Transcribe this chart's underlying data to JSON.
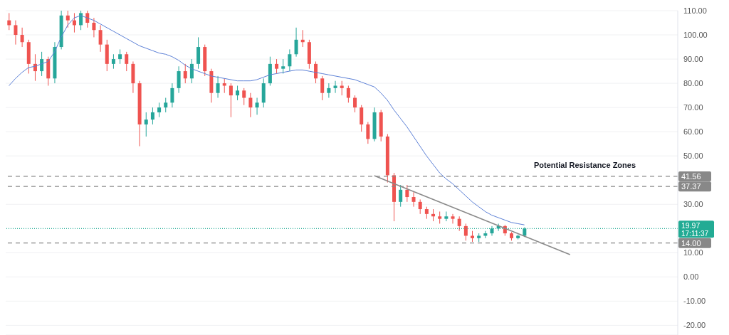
{
  "chart_data": {
    "type": "candlestick",
    "categories": [
      null,
      null,
      null,
      null,
      null,
      null,
      null,
      null,
      null,
      null,
      null,
      null,
      null,
      null,
      null,
      null,
      null,
      null,
      null,
      null,
      null,
      null,
      null,
      null,
      null,
      null,
      null,
      null,
      null,
      null,
      null,
      null,
      null,
      null,
      null,
      null,
      null,
      null,
      null,
      null,
      null,
      null,
      null,
      null,
      null,
      null,
      null,
      null,
      null,
      null,
      null,
      null,
      null,
      null,
      null,
      null,
      null,
      null,
      null,
      null,
      null,
      null,
      null,
      null,
      null,
      null,
      null,
      null,
      null,
      null,
      null,
      null,
      null,
      null,
      null,
      null,
      null,
      null,
      null,
      null,
      null,
      null,
      null,
      null,
      null,
      null,
      null,
      null,
      null,
      null,
      null,
      null,
      null,
      null,
      null,
      null,
      null,
      null,
      null,
      null,
      null,
      null,
      null
    ],
    "ohlc": [
      [
        106,
        109,
        102,
        104
      ],
      [
        104,
        106,
        96,
        100
      ],
      [
        100,
        103,
        95,
        97
      ],
      [
        97,
        98,
        84,
        88
      ],
      [
        88,
        92,
        81,
        85
      ],
      [
        85,
        93,
        83,
        90
      ],
      [
        90,
        91,
        79,
        82
      ],
      [
        82,
        97,
        80,
        95
      ],
      [
        95,
        110,
        94,
        108
      ],
      [
        108,
        110,
        103,
        106
      ],
      [
        106,
        109,
        101,
        104
      ],
      [
        104,
        110,
        102,
        109
      ],
      [
        109,
        111,
        103,
        105
      ],
      [
        105,
        107,
        99,
        102
      ],
      [
        102,
        104,
        93,
        96
      ],
      [
        96,
        98,
        85,
        88
      ],
      [
        88,
        92,
        86,
        90
      ],
      [
        90,
        94,
        88,
        92
      ],
      [
        92,
        93,
        85,
        88
      ],
      [
        88,
        89,
        76,
        80
      ],
      [
        80,
        81,
        54,
        63
      ],
      [
        63,
        68,
        58,
        65
      ],
      [
        65,
        70,
        63,
        68
      ],
      [
        68,
        72,
        66,
        70
      ],
      [
        70,
        74,
        68,
        72
      ],
      [
        72,
        80,
        70,
        78
      ],
      [
        78,
        87,
        76,
        85
      ],
      [
        85,
        88,
        80,
        82
      ],
      [
        82,
        90,
        80,
        88
      ],
      [
        88,
        99,
        86,
        95
      ],
      [
        95,
        96,
        83,
        85
      ],
      [
        85,
        86,
        72,
        76
      ],
      [
        76,
        83,
        74,
        80
      ],
      [
        80,
        82,
        76,
        79
      ],
      [
        79,
        80,
        66,
        75
      ],
      [
        75,
        79,
        73,
        77
      ],
      [
        77,
        78,
        71,
        74
      ],
      [
        74,
        76,
        66,
        70
      ],
      [
        70,
        74,
        67,
        72
      ],
      [
        72,
        82,
        70,
        80
      ],
      [
        80,
        91,
        79,
        88
      ],
      [
        88,
        90,
        84,
        86
      ],
      [
        86,
        90,
        84,
        87
      ],
      [
        87,
        94,
        85,
        92
      ],
      [
        92,
        103,
        91,
        98
      ],
      [
        98,
        102,
        95,
        97
      ],
      [
        97,
        98,
        86,
        88
      ],
      [
        88,
        89,
        80,
        82
      ],
      [
        82,
        83,
        73,
        76
      ],
      [
        76,
        80,
        74,
        78
      ],
      [
        78,
        81,
        76,
        79
      ],
      [
        79,
        81,
        75,
        78
      ],
      [
        78,
        79,
        72,
        74
      ],
      [
        74,
        75,
        68,
        70
      ],
      [
        70,
        71,
        60,
        63
      ],
      [
        63,
        64,
        55,
        57
      ],
      [
        57,
        70,
        56,
        68
      ],
      [
        68,
        69,
        56,
        58
      ],
      [
        58,
        59,
        39,
        42
      ],
      [
        42,
        43,
        23,
        31
      ],
      [
        31,
        38,
        29,
        36
      ],
      [
        36,
        38,
        31,
        33
      ],
      [
        33,
        35,
        29,
        31
      ],
      [
        31,
        32,
        26,
        28
      ],
      [
        28,
        29,
        24,
        26
      ],
      [
        26,
        28,
        23,
        25
      ],
      [
        25,
        27,
        22,
        24
      ],
      [
        24,
        27,
        23,
        25
      ],
      [
        25,
        26,
        22,
        24
      ],
      [
        24,
        25,
        19,
        21
      ],
      [
        21,
        22,
        15,
        17
      ],
      [
        17,
        19,
        14.5,
        16
      ],
      [
        16,
        18,
        14.5,
        17
      ],
      [
        17,
        19,
        16,
        18
      ],
      [
        18,
        21,
        17,
        20
      ],
      [
        20,
        22,
        19,
        21
      ],
      [
        21,
        21.5,
        17,
        18
      ],
      [
        18,
        18.5,
        15,
        16
      ],
      [
        16,
        17.5,
        15.5,
        17
      ],
      [
        17,
        20.5,
        16.5,
        19.97
      ],
      null,
      null,
      null,
      null,
      null,
      null,
      null,
      null,
      null,
      null,
      null,
      null,
      null,
      null,
      null,
      null,
      null,
      null,
      null,
      null,
      null,
      null,
      null
    ],
    "colors": [
      "#ef5350",
      "#ef5350",
      "#ef5350",
      "#ef5350",
      "#ef5350",
      "#26a69a",
      "#ef5350",
      "#26a69a",
      "#26a69a",
      "#ef5350",
      "#ef5350",
      "#26a69a",
      "#ef5350",
      "#ef5350",
      "#ef5350",
      "#ef5350",
      "#26a69a",
      "#26a69a",
      "#ef5350",
      "#ef5350",
      "#ef5350",
      "#26a69a",
      "#26a69a",
      "#26a69a",
      "#26a69a",
      "#26a69a",
      "#26a69a",
      "#ef5350",
      "#26a69a",
      "#26a69a",
      "#ef5350",
      "#ef5350",
      "#26a69a",
      "#ef5350",
      "#ef5350",
      "#26a69a",
      "#ef5350",
      "#ef5350",
      "#26a69a",
      "#26a69a",
      "#26a69a",
      "#ef5350",
      "#26a69a",
      "#26a69a",
      "#26a69a",
      "#ef5350",
      "#ef5350",
      "#ef5350",
      "#ef5350",
      "#26a69a",
      "#26a69a",
      "#ef5350",
      "#ef5350",
      "#ef5350",
      "#ef5350",
      "#ef5350",
      "#26a69a",
      "#ef5350",
      "#ef5350",
      "#ef5350",
      "#26a69a",
      "#ef5350",
      "#ef5350",
      "#ef5350",
      "#ef5350",
      "#ef5350",
      "#ef5350",
      "#26a69a",
      "#ef5350",
      "#ef5350",
      "#ef5350",
      "#ef5350",
      "#26a69a",
      "#26a69a",
      "#26a69a",
      "#26a69a",
      "#ef5350",
      "#ef5350",
      "#26a69a",
      "#26a69a",
      null,
      null,
      null,
      null,
      null,
      null,
      null,
      null,
      null,
      null,
      null,
      null,
      null,
      null,
      null,
      null,
      null,
      null,
      null,
      null,
      null,
      null,
      null
    ],
    "series": [
      {
        "type": "line",
        "color": "#5b7fd6",
        "values": [
          79,
          82,
          84.5,
          86.5,
          87,
          88,
          89,
          93,
          99,
          104,
          107,
          108,
          107,
          106,
          104.5,
          103,
          101.5,
          100,
          98.5,
          97,
          95.5,
          94.5,
          93.5,
          92.5,
          92,
          91,
          89.5,
          87.5,
          86,
          85,
          84,
          83,
          82.5,
          82,
          81.5,
          81,
          81,
          81,
          81.5,
          82.5,
          83.5,
          84,
          84.5,
          85,
          85.5,
          85.5,
          85,
          84.5,
          84,
          83.5,
          83,
          82.5,
          82,
          81.5,
          80.5,
          79.5,
          78.5,
          76,
          73,
          69,
          65.5,
          62,
          58,
          54,
          50,
          46.5,
          43,
          40.5,
          38.5,
          36,
          33.5,
          31,
          29,
          27,
          25.5,
          24.5,
          23.5,
          22.5,
          22,
          21.5,
          null,
          null,
          null,
          null,
          null,
          null,
          null,
          null,
          null,
          null,
          null,
          null,
          null,
          null,
          null,
          null,
          null,
          null,
          null,
          null,
          null,
          null,
          null
        ]
      },
      {
        "type": "line",
        "color": "#8a8a8a",
        "values": [
          null,
          null,
          null,
          null,
          null,
          null,
          null,
          null,
          null,
          null,
          null,
          null,
          null,
          null,
          null,
          null,
          null,
          null,
          null,
          null,
          null,
          null,
          null,
          null,
          null,
          null,
          null,
          null,
          null,
          null,
          null,
          null,
          null,
          null,
          null,
          null,
          null,
          null,
          null,
          null,
          null,
          null,
          null,
          null,
          null,
          null,
          null,
          null,
          null,
          null,
          null,
          null,
          null,
          null,
          null,
          null,
          41.8,
          null,
          null,
          null,
          null,
          null,
          null,
          null,
          null,
          null,
          null,
          null,
          null,
          null,
          null,
          null,
          null,
          null,
          null,
          null,
          null,
          null,
          null,
          null,
          null,
          null,
          null,
          null,
          null,
          null,
          9.2,
          null,
          null,
          null,
          null,
          null,
          null,
          null,
          null,
          null,
          null,
          null,
          null,
          null,
          null,
          null,
          null
        ]
      }
    ],
    "ylim": [
      -24,
      110
    ],
    "yticks": [
      {
        "value": -20,
        "label": "-20.00"
      },
      {
        "value": -10,
        "label": "-10.00"
      },
      {
        "value": 0,
        "label": "0.00"
      },
      {
        "value": 10,
        "label": "10.00"
      },
      {
        "value": 30,
        "label": "30.00"
      },
      {
        "value": 50,
        "label": "50.00"
      },
      {
        "value": 60,
        "label": "60.00"
      },
      {
        "value": 70,
        "label": "70.00"
      },
      {
        "value": 80,
        "label": "80.00"
      },
      {
        "value": 90,
        "label": "90.00"
      },
      {
        "value": 100,
        "label": "100.00"
      },
      {
        "value": 110,
        "label": "110.00"
      }
    ],
    "ref_lines": [
      {
        "axis": "y",
        "value": 41.56,
        "label": "41.56",
        "color": "#888888",
        "line_style": "dashed"
      },
      {
        "axis": "y",
        "value": 37.37,
        "label": "37.37",
        "color": "#888888",
        "line_style": "dashed"
      },
      {
        "axis": "y",
        "value": 14,
        "label": "14.00",
        "color": "#888888",
        "line_style": "dashed"
      },
      {
        "axis": "y",
        "value": 19.97,
        "label": "19.97",
        "color": "#22ab94",
        "line_style": "dotted"
      }
    ],
    "annotations": [
      "Potential Resistance Zones",
      "17:11:37"
    ],
    "grid": "y"
  }
}
